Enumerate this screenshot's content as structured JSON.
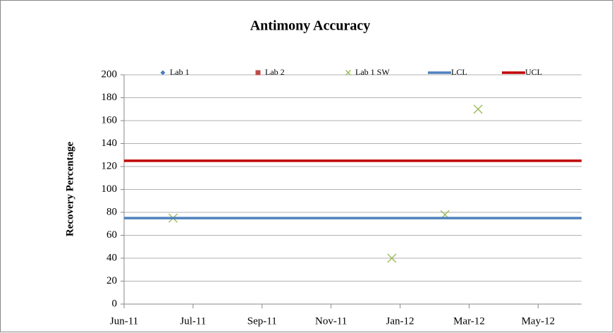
{
  "chart_data": {
    "type": "scatter",
    "title": "Antimony  Accuracy",
    "y_label": "Recovery Percentage",
    "xlim": [
      0,
      6.63
    ],
    "xticks": [
      {
        "value": 0,
        "label": "Jun-11"
      },
      {
        "value": 1,
        "label": "Jul-11"
      },
      {
        "value": 2,
        "label": "Sep-11"
      },
      {
        "value": 3,
        "label": "Nov-11"
      },
      {
        "value": 4,
        "label": "Jan-12"
      },
      {
        "value": 5,
        "label": "Mar-12"
      },
      {
        "value": 6,
        "label": "May-12"
      }
    ],
    "ylim": [
      0,
      200
    ],
    "yticks": [
      0,
      20,
      40,
      60,
      80,
      100,
      120,
      140,
      160,
      180,
      200
    ],
    "grid": true,
    "legend": "top",
    "series": [
      {
        "name": "Lab 1",
        "color": "#4a7ebb",
        "marker": "diamond",
        "x": [],
        "values": []
      },
      {
        "name": "Lab 2",
        "color": "#be4b48",
        "marker": "square",
        "x": [],
        "values": []
      },
      {
        "name": "Lab 1 SW",
        "color": "#98b954",
        "marker": "x",
        "x": [
          0.71,
          3.88,
          4.65,
          5.13
        ],
        "values": [
          75,
          40,
          78,
          170
        ]
      },
      {
        "name": "LCL",
        "color": "#4f81bd",
        "marker": "line",
        "x": [
          0,
          6.63
        ],
        "values": [
          75,
          75
        ]
      },
      {
        "name": "UCL",
        "color": "#c00000",
        "marker": "line",
        "x": [
          0,
          6.63
        ],
        "values": [
          125,
          125
        ]
      }
    ]
  }
}
